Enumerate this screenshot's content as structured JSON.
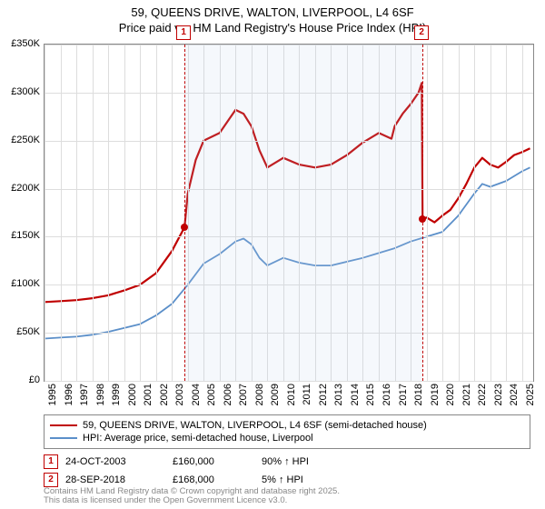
{
  "title_line1": "59, QUEENS DRIVE, WALTON, LIVERPOOL, L4 6SF",
  "title_line2": "Price paid vs. HM Land Registry's House Price Index (HPI)",
  "chart": {
    "type": "line",
    "background_color": "#ffffff",
    "grid_color": "#dddddd",
    "border_color": "#888888",
    "x_min": 1995,
    "x_max": 2025.7,
    "x_ticks": [
      1995,
      1996,
      1997,
      1998,
      1999,
      2000,
      2001,
      2002,
      2003,
      2004,
      2005,
      2006,
      2007,
      2008,
      2009,
      2010,
      2011,
      2012,
      2013,
      2014,
      2015,
      2016,
      2017,
      2018,
      2019,
      2020,
      2021,
      2022,
      2023,
      2024,
      2025
    ],
    "y_min": 0,
    "y_max": 350000,
    "y_ticks": [
      0,
      50000,
      100000,
      150000,
      200000,
      250000,
      300000,
      350000
    ],
    "y_tick_labels": [
      "£0",
      "£50K",
      "£100K",
      "£150K",
      "£200K",
      "£250K",
      "£300K",
      "£350K"
    ],
    "shade": {
      "from": 2003.8,
      "to": 2018.75,
      "color": "#bcd3ea"
    },
    "markers": [
      {
        "num": "1",
        "x": 2003.8,
        "price_y": 160000,
        "box_color": "#c00000"
      },
      {
        "num": "2",
        "x": 2018.75,
        "price_y": 168000,
        "box_color": "#c00000"
      }
    ],
    "series": [
      {
        "name": "property",
        "color": "#c00000",
        "width": 2.2,
        "points": [
          [
            1995,
            82000
          ],
          [
            1996,
            83000
          ],
          [
            1997,
            84000
          ],
          [
            1998,
            86000
          ],
          [
            1999,
            89000
          ],
          [
            2000,
            94000
          ],
          [
            2001,
            100000
          ],
          [
            2002,
            112000
          ],
          [
            2003,
            135000
          ],
          [
            2003.8,
            160000
          ],
          [
            2004,
            195000
          ],
          [
            2004.5,
            230000
          ],
          [
            2005,
            250000
          ],
          [
            2006,
            258000
          ],
          [
            2006.5,
            270000
          ],
          [
            2007,
            282000
          ],
          [
            2007.5,
            278000
          ],
          [
            2008,
            265000
          ],
          [
            2008.5,
            240000
          ],
          [
            2009,
            222000
          ],
          [
            2010,
            232000
          ],
          [
            2011,
            225000
          ],
          [
            2012,
            222000
          ],
          [
            2013,
            225000
          ],
          [
            2014,
            235000
          ],
          [
            2015,
            248000
          ],
          [
            2016,
            258000
          ],
          [
            2016.8,
            252000
          ],
          [
            2017,
            265000
          ],
          [
            2017.5,
            278000
          ],
          [
            2018,
            288000
          ],
          [
            2018.5,
            300000
          ],
          [
            2018.7,
            310000
          ],
          [
            2018.75,
            168000
          ],
          [
            2019,
            170000
          ],
          [
            2019.5,
            165000
          ],
          [
            2020,
            172000
          ],
          [
            2020.5,
            178000
          ],
          [
            2021,
            190000
          ],
          [
            2021.5,
            205000
          ],
          [
            2022,
            222000
          ],
          [
            2022.5,
            232000
          ],
          [
            2023,
            225000
          ],
          [
            2023.5,
            222000
          ],
          [
            2024,
            228000
          ],
          [
            2024.5,
            235000
          ],
          [
            2025,
            238000
          ],
          [
            2025.5,
            242000
          ]
        ]
      },
      {
        "name": "hpi",
        "color": "#5b8fc9",
        "width": 1.8,
        "points": [
          [
            1995,
            44000
          ],
          [
            1996,
            45000
          ],
          [
            1997,
            46000
          ],
          [
            1998,
            48000
          ],
          [
            1999,
            51000
          ],
          [
            2000,
            55000
          ],
          [
            2001,
            59000
          ],
          [
            2002,
            68000
          ],
          [
            2003,
            80000
          ],
          [
            2004,
            100000
          ],
          [
            2005,
            122000
          ],
          [
            2006,
            132000
          ],
          [
            2007,
            145000
          ],
          [
            2007.5,
            148000
          ],
          [
            2008,
            142000
          ],
          [
            2008.5,
            128000
          ],
          [
            2009,
            120000
          ],
          [
            2010,
            128000
          ],
          [
            2011,
            123000
          ],
          [
            2012,
            120000
          ],
          [
            2013,
            120000
          ],
          [
            2014,
            124000
          ],
          [
            2015,
            128000
          ],
          [
            2016,
            133000
          ],
          [
            2017,
            138000
          ],
          [
            2018,
            145000
          ],
          [
            2019,
            150000
          ],
          [
            2020,
            155000
          ],
          [
            2021,
            172000
          ],
          [
            2022,
            195000
          ],
          [
            2022.5,
            205000
          ],
          [
            2023,
            202000
          ],
          [
            2024,
            208000
          ],
          [
            2025,
            218000
          ],
          [
            2025.5,
            222000
          ]
        ]
      }
    ]
  },
  "legend": {
    "items": [
      {
        "color": "#c00000",
        "label": "59, QUEENS DRIVE, WALTON, LIVERPOOL, L4 6SF (semi-detached house)"
      },
      {
        "color": "#5b8fc9",
        "label": "HPI: Average price, semi-detached house, Liverpool"
      }
    ]
  },
  "table": {
    "rows": [
      {
        "num": "1",
        "color": "#c00000",
        "date": "24-OCT-2003",
        "price": "£160,000",
        "delta": "90% ↑ HPI"
      },
      {
        "num": "2",
        "color": "#c00000",
        "date": "28-SEP-2018",
        "price": "£168,000",
        "delta": "5% ↑ HPI"
      }
    ]
  },
  "footer_line1": "Contains HM Land Registry data © Crown copyright and database right 2025.",
  "footer_line2": "This data is licensed under the Open Government Licence v3.0."
}
